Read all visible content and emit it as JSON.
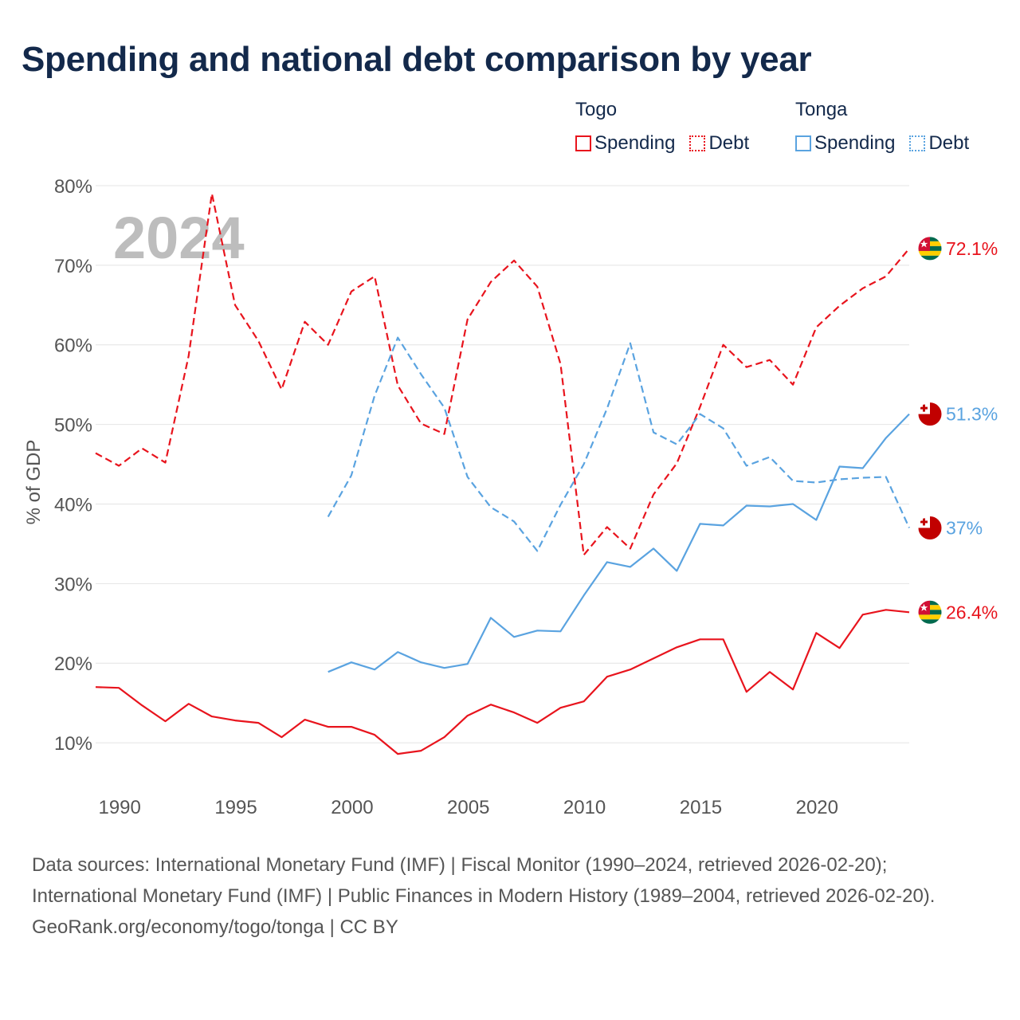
{
  "title": "Spending and national debt comparison by year",
  "legend": {
    "groups": [
      {
        "name": "Togo",
        "color": "#e8141d",
        "items": [
          {
            "label": "Spending",
            "style": "solid"
          },
          {
            "label": "Debt",
            "style": "dotted"
          }
        ]
      },
      {
        "name": "Tonga",
        "color": "#5aa3e0",
        "items": [
          {
            "label": "Spending",
            "style": "solid"
          },
          {
            "label": "Debt",
            "style": "dotted"
          }
        ]
      }
    ]
  },
  "chart_data": {
    "type": "line",
    "title": "Spending and national debt comparison by year",
    "ylabel": "% of GDP",
    "xlabel": "",
    "year_watermark": "2024",
    "xlim": [
      1989,
      2024
    ],
    "ylim": [
      2,
      82
    ],
    "x_ticks": [
      1990,
      1995,
      2000,
      2005,
      2010,
      2015,
      2020
    ],
    "y_ticks": [
      10,
      20,
      30,
      40,
      50,
      60,
      70,
      80
    ],
    "y_tick_labels": [
      "10%",
      "20%",
      "30%",
      "40%",
      "50%",
      "60%",
      "70%",
      "80%"
    ],
    "grid": "horizontal",
    "series": [
      {
        "name": "Togo Debt",
        "country": "Togo",
        "metric": "Debt",
        "color": "#e8141d",
        "dash": "dashed",
        "end_label": "72.1%",
        "flag": "togo",
        "x": [
          1989,
          1990,
          1991,
          1992,
          1993,
          1994,
          1995,
          1996,
          1997,
          1998,
          1999,
          2000,
          2001,
          2002,
          2003,
          2004,
          2005,
          2006,
          2007,
          2008,
          2009,
          2010,
          2011,
          2012,
          2013,
          2014,
          2015,
          2016,
          2017,
          2018,
          2019,
          2020,
          2021,
          2022,
          2023,
          2024
        ],
        "values": [
          46.4,
          44.8,
          47.0,
          45.2,
          58.6,
          79.0,
          65.0,
          60.5,
          54.4,
          62.9,
          60.0,
          66.7,
          68.6,
          54.9,
          50.1,
          48.8,
          63.2,
          67.9,
          70.6,
          67.3,
          57.6,
          33.6,
          37.1,
          34.4,
          41.2,
          45.1,
          52.2,
          60.0,
          57.2,
          58.1,
          55.0,
          62.2,
          64.9,
          67.1,
          68.6,
          72.1
        ]
      },
      {
        "name": "Tonga Debt",
        "country": "Tonga",
        "metric": "Debt",
        "color": "#5aa3e0",
        "dash": "dashed",
        "end_label": "37%",
        "flag": "tonga",
        "x": [
          1999,
          2000,
          2001,
          2002,
          2003,
          2004,
          2005,
          2006,
          2007,
          2008,
          2009,
          2010,
          2011,
          2012,
          2013,
          2014,
          2015,
          2016,
          2017,
          2018,
          2019,
          2020,
          2021,
          2022,
          2023,
          2024
        ],
        "values": [
          38.4,
          43.6,
          53.6,
          60.9,
          56.3,
          52.1,
          43.4,
          39.6,
          37.8,
          34.1,
          39.9,
          45.0,
          52.0,
          60.2,
          49.0,
          47.5,
          51.3,
          49.5,
          44.8,
          45.9,
          42.9,
          42.7,
          43.1,
          43.3,
          43.4,
          37.0
        ]
      },
      {
        "name": "Tonga Spending",
        "country": "Tonga",
        "metric": "Spending",
        "color": "#5aa3e0",
        "dash": "solid",
        "end_label": "51.3%",
        "flag": "tonga",
        "x": [
          1999,
          2000,
          2001,
          2002,
          2003,
          2004,
          2005,
          2006,
          2007,
          2008,
          2009,
          2010,
          2011,
          2012,
          2013,
          2014,
          2015,
          2016,
          2017,
          2018,
          2019,
          2020,
          2021,
          2022,
          2023,
          2024
        ],
        "values": [
          18.9,
          20.1,
          19.2,
          21.4,
          20.1,
          19.4,
          19.9,
          25.7,
          23.3,
          24.1,
          24.0,
          28.5,
          32.7,
          32.1,
          34.4,
          31.6,
          37.5,
          37.3,
          39.8,
          39.7,
          40.0,
          38.0,
          44.7,
          44.5,
          48.3,
          51.3
        ]
      },
      {
        "name": "Togo Spending",
        "country": "Togo",
        "metric": "Spending",
        "color": "#e8141d",
        "dash": "solid",
        "end_label": "26.4%",
        "flag": "togo",
        "x": [
          1989,
          1990,
          1991,
          1992,
          1993,
          1994,
          1995,
          1996,
          1997,
          1998,
          1999,
          2000,
          2001,
          2002,
          2003,
          2004,
          2005,
          2006,
          2007,
          2008,
          2009,
          2010,
          2011,
          2012,
          2013,
          2014,
          2015,
          2016,
          2017,
          2018,
          2019,
          2020,
          2021,
          2022,
          2023,
          2024
        ],
        "values": [
          17.0,
          16.9,
          14.7,
          12.7,
          14.9,
          13.3,
          12.8,
          12.5,
          10.7,
          12.9,
          12.0,
          12.0,
          11.0,
          8.6,
          9.0,
          10.7,
          13.4,
          14.8,
          13.8,
          12.5,
          14.4,
          15.2,
          18.3,
          19.2,
          20.6,
          22.0,
          23.0,
          23.0,
          16.4,
          18.9,
          16.7,
          23.8,
          21.9,
          26.1,
          26.7,
          26.4
        ]
      }
    ]
  },
  "footer": {
    "sources": "Data sources: International Monetary Fund (IMF) | Fiscal Monitor (1990–2024, retrieved 2026-02-20); International Monetary Fund (IMF) | Public Finances in Modern History (1989–2004, retrieved 2026-02-20).",
    "credit": "GeoRank.org/economy/togo/tonga | CC BY"
  }
}
